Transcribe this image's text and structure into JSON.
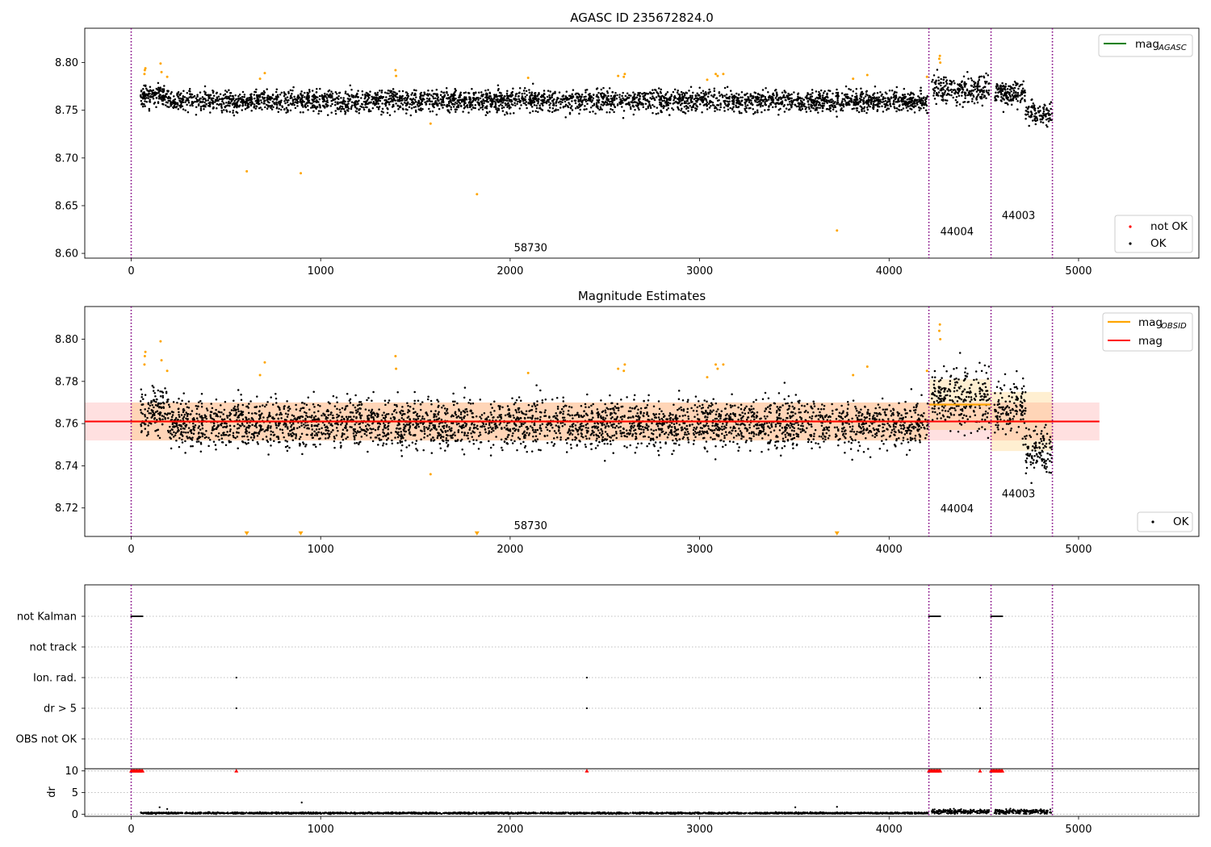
{
  "chart_data": [
    {
      "type": "scatter",
      "title": "AGASC ID 235672824.0",
      "xlabel": "",
      "ylabel": "",
      "xlim": [
        -245,
        5635
      ],
      "ylim": [
        8.595,
        8.836
      ],
      "xticks": [
        0,
        1000,
        2000,
        3000,
        4000,
        5000
      ],
      "yticks": [
        8.6,
        8.65,
        8.7,
        8.75,
        8.8
      ],
      "series": [
        {
          "name": "OK",
          "color": "#000000",
          "center": 8.76,
          "spread": 0.008,
          "segments": [
            [
              50,
              4205
            ],
            [
              4225,
              4530
            ],
            [
              4555,
              4860
            ]
          ]
        },
        {
          "name": "not OK",
          "color": "#ff0000",
          "values": []
        },
        {
          "name": "",
          "color": "#ffa500",
          "points": [
            [
              70,
              8.788
            ],
            [
              72,
              8.792
            ],
            [
              75,
              8.794
            ],
            [
              155,
              8.799
            ],
            [
              160,
              8.79
            ],
            [
              190,
              8.785
            ],
            [
              610,
              8.686
            ],
            [
              680,
              8.783
            ],
            [
              705,
              8.789
            ],
            [
              895,
              8.684
            ],
            [
              1395,
              8.792
            ],
            [
              1398,
              8.786
            ],
            [
              1580,
              8.736
            ],
            [
              1825,
              8.662
            ],
            [
              2095,
              8.784
            ],
            [
              2570,
              8.786
            ],
            [
              2600,
              8.785
            ],
            [
              2605,
              8.788
            ],
            [
              3040,
              8.782
            ],
            [
              3085,
              8.788
            ],
            [
              3095,
              8.786
            ],
            [
              3125,
              8.788
            ],
            [
              3725,
              8.624
            ],
            [
              3810,
              8.783
            ],
            [
              3885,
              8.787
            ],
            [
              4200,
              8.785
            ],
            [
              4265,
              8.804
            ],
            [
              4268,
              8.807
            ],
            [
              4270,
              8.8
            ]
          ]
        }
      ],
      "vlines": [
        0,
        4210,
        4538,
        4862
      ],
      "annotations": [
        {
          "text": "58730",
          "x": 2020,
          "y": 8.602
        },
        {
          "text": "44004",
          "x": 4270,
          "y": 8.619
        },
        {
          "text": "44003",
          "x": 4595,
          "y": 8.636
        }
      ],
      "legend_lines": [
        {
          "label": "mag",
          "sub": "AGASC",
          "color": "#008000"
        }
      ],
      "legend_points": [
        {
          "label": "not OK",
          "color": "#ff0000"
        },
        {
          "label": "OK",
          "color": "#000000"
        }
      ],
      "legend_positions": [
        "top-right",
        "bottom-right"
      ]
    },
    {
      "type": "scatter",
      "title": "Magnitude Estimates",
      "xlabel": "",
      "ylabel": "",
      "xlim": [
        -245,
        5635
      ],
      "ylim": [
        8.7065,
        8.8155
      ],
      "xticks": [
        0,
        1000,
        2000,
        3000,
        4000,
        5000
      ],
      "yticks": [
        8.72,
        8.74,
        8.76,
        8.78,
        8.8
      ],
      "mag": {
        "value": 8.761,
        "band": [
          8.752,
          8.77
        ],
        "x": [
          -245,
          5110
        ],
        "color": "#ff0000"
      },
      "mag_obsid": [
        {
          "x": [
            0,
            4210
          ],
          "value": 8.761,
          "band": [
            8.752,
            8.77
          ]
        },
        {
          "x": [
            4210,
            4538
          ],
          "value": 8.769,
          "band": [
            8.757,
            8.781
          ]
        },
        {
          "x": [
            4538,
            4862
          ],
          "value": 8.761,
          "band": [
            8.747,
            8.775
          ]
        }
      ],
      "series": [
        {
          "name": "OK",
          "color": "#000000",
          "center": 8.76,
          "spread": 0.008,
          "segments": [
            [
              50,
              4205
            ],
            [
              4225,
              4530
            ],
            [
              4555,
              4860
            ]
          ]
        },
        {
          "name": "",
          "color": "#ffa500",
          "points": [
            [
              70,
              8.788
            ],
            [
              72,
              8.792
            ],
            [
              75,
              8.794
            ],
            [
              155,
              8.799
            ],
            [
              160,
              8.79
            ],
            [
              190,
              8.785
            ],
            [
              680,
              8.783
            ],
            [
              705,
              8.789
            ],
            [
              1395,
              8.792
            ],
            [
              1398,
              8.786
            ],
            [
              1580,
              8.736
            ],
            [
              2095,
              8.784
            ],
            [
              2570,
              8.786
            ],
            [
              2600,
              8.785
            ],
            [
              2605,
              8.788
            ],
            [
              3040,
              8.782
            ],
            [
              3085,
              8.788
            ],
            [
              3095,
              8.786
            ],
            [
              3125,
              8.788
            ],
            [
              3810,
              8.783
            ],
            [
              3885,
              8.787
            ],
            [
              4200,
              8.785
            ],
            [
              4265,
              8.804
            ],
            [
              4268,
              8.807
            ],
            [
              4270,
              8.8
            ]
          ]
        },
        {
          "name": "",
          "color": "#ffa500",
          "marker": "triangle-down",
          "points": [
            [
              610,
              8.707
            ],
            [
              895,
              8.707
            ],
            [
              1825,
              8.707
            ],
            [
              3725,
              8.707
            ]
          ]
        }
      ],
      "vlines": [
        0,
        4210,
        4538,
        4862
      ],
      "annotations": [
        {
          "text": "58730",
          "x": 2020,
          "y": 8.71
        },
        {
          "text": "44004",
          "x": 4270,
          "y": 8.718
        },
        {
          "text": "44003",
          "x": 4595,
          "y": 8.725
        }
      ],
      "legend_lines": [
        {
          "label": "mag",
          "sub": "OBSID",
          "color": "#ffa500"
        },
        {
          "label": "mag",
          "sub": "",
          "color": "#ff0000"
        }
      ],
      "legend_points": [
        {
          "label": "OK",
          "color": "#000000"
        }
      ],
      "legend_positions": [
        "top-right",
        "bottom-right"
      ]
    },
    {
      "type": "scatter",
      "title": "",
      "categories": [
        "not Kalman",
        "not track",
        "Ion. rad.",
        "dr > 5",
        "OBS not OK"
      ],
      "flags": {
        "not Kalman": [
          [
            0,
            60
          ],
          [
            4210,
            4270
          ],
          [
            4538,
            4598
          ]
        ],
        "not track": [],
        "Ion. rad.": [
          555,
          2405,
          4480
        ],
        "dr > 5": [
          555,
          2405,
          4480
        ],
        "OBS not OK": []
      },
      "xlim": [
        -245,
        5635
      ],
      "vlines": [
        0,
        4210,
        4538,
        4862
      ]
    },
    {
      "type": "scatter",
      "title": "",
      "xlabel": "",
      "ylabel": "dr",
      "xlim": [
        -245,
        5635
      ],
      "ylim": [
        -0.5,
        10.5
      ],
      "yticks": [
        0,
        5,
        10
      ],
      "xticks": [
        0,
        1000,
        2000,
        3000,
        4000,
        5000
      ],
      "series": [
        {
          "name": "",
          "color": "#000000",
          "segments": [
            [
              50,
              4205
            ],
            [
              4225,
              4530
            ],
            [
              4555,
              4860
            ]
          ],
          "typical": 0.3
        },
        {
          "name": "",
          "color": "#ff0000",
          "marker": "triangle-up",
          "value": 10,
          "x": [
            0,
            60,
            555,
            2405,
            4210,
            4270,
            4480,
            4538,
            4598
          ]
        }
      ],
      "vlines": [
        0,
        4210,
        4538,
        4862
      ]
    }
  ]
}
